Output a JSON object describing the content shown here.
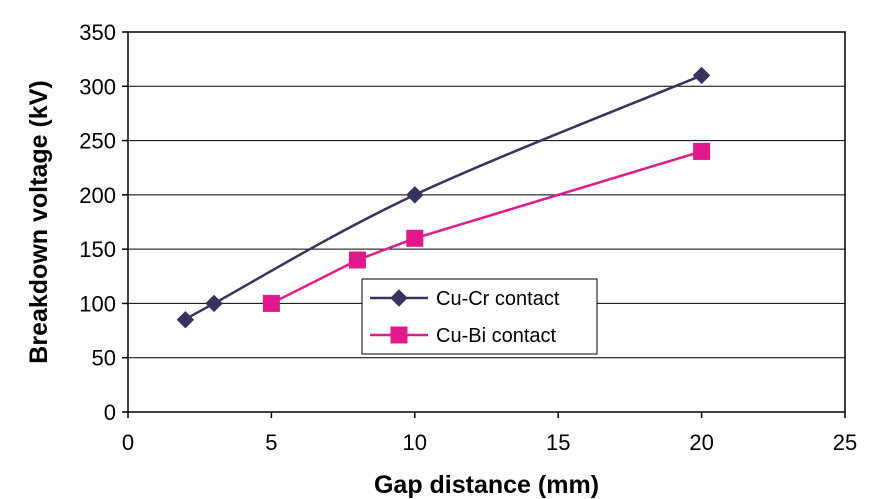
{
  "chart_data": {
    "type": "line",
    "title": "",
    "xlabel": "Gap distance (mm)",
    "ylabel": "Breakdown voltage (kV)",
    "xlim": [
      0,
      25
    ],
    "ylim": [
      0,
      350
    ],
    "xticks": [
      0,
      5,
      10,
      15,
      20,
      25
    ],
    "yticks": [
      0,
      50,
      100,
      150,
      200,
      250,
      300,
      350
    ],
    "grid": "horizontal",
    "legend_position": "center-right",
    "series": [
      {
        "name": "Cu-Cr contact",
        "marker": "diamond",
        "color": "#34345f",
        "smooth": true,
        "x": [
          2,
          3,
          10,
          20
        ],
        "y": [
          85,
          100,
          200,
          310
        ]
      },
      {
        "name": "Cu-Bi contact",
        "marker": "square",
        "color": "#e2198c",
        "smooth": false,
        "x": [
          5,
          8,
          10,
          20
        ],
        "y": [
          100,
          140,
          160,
          240
        ]
      }
    ]
  }
}
